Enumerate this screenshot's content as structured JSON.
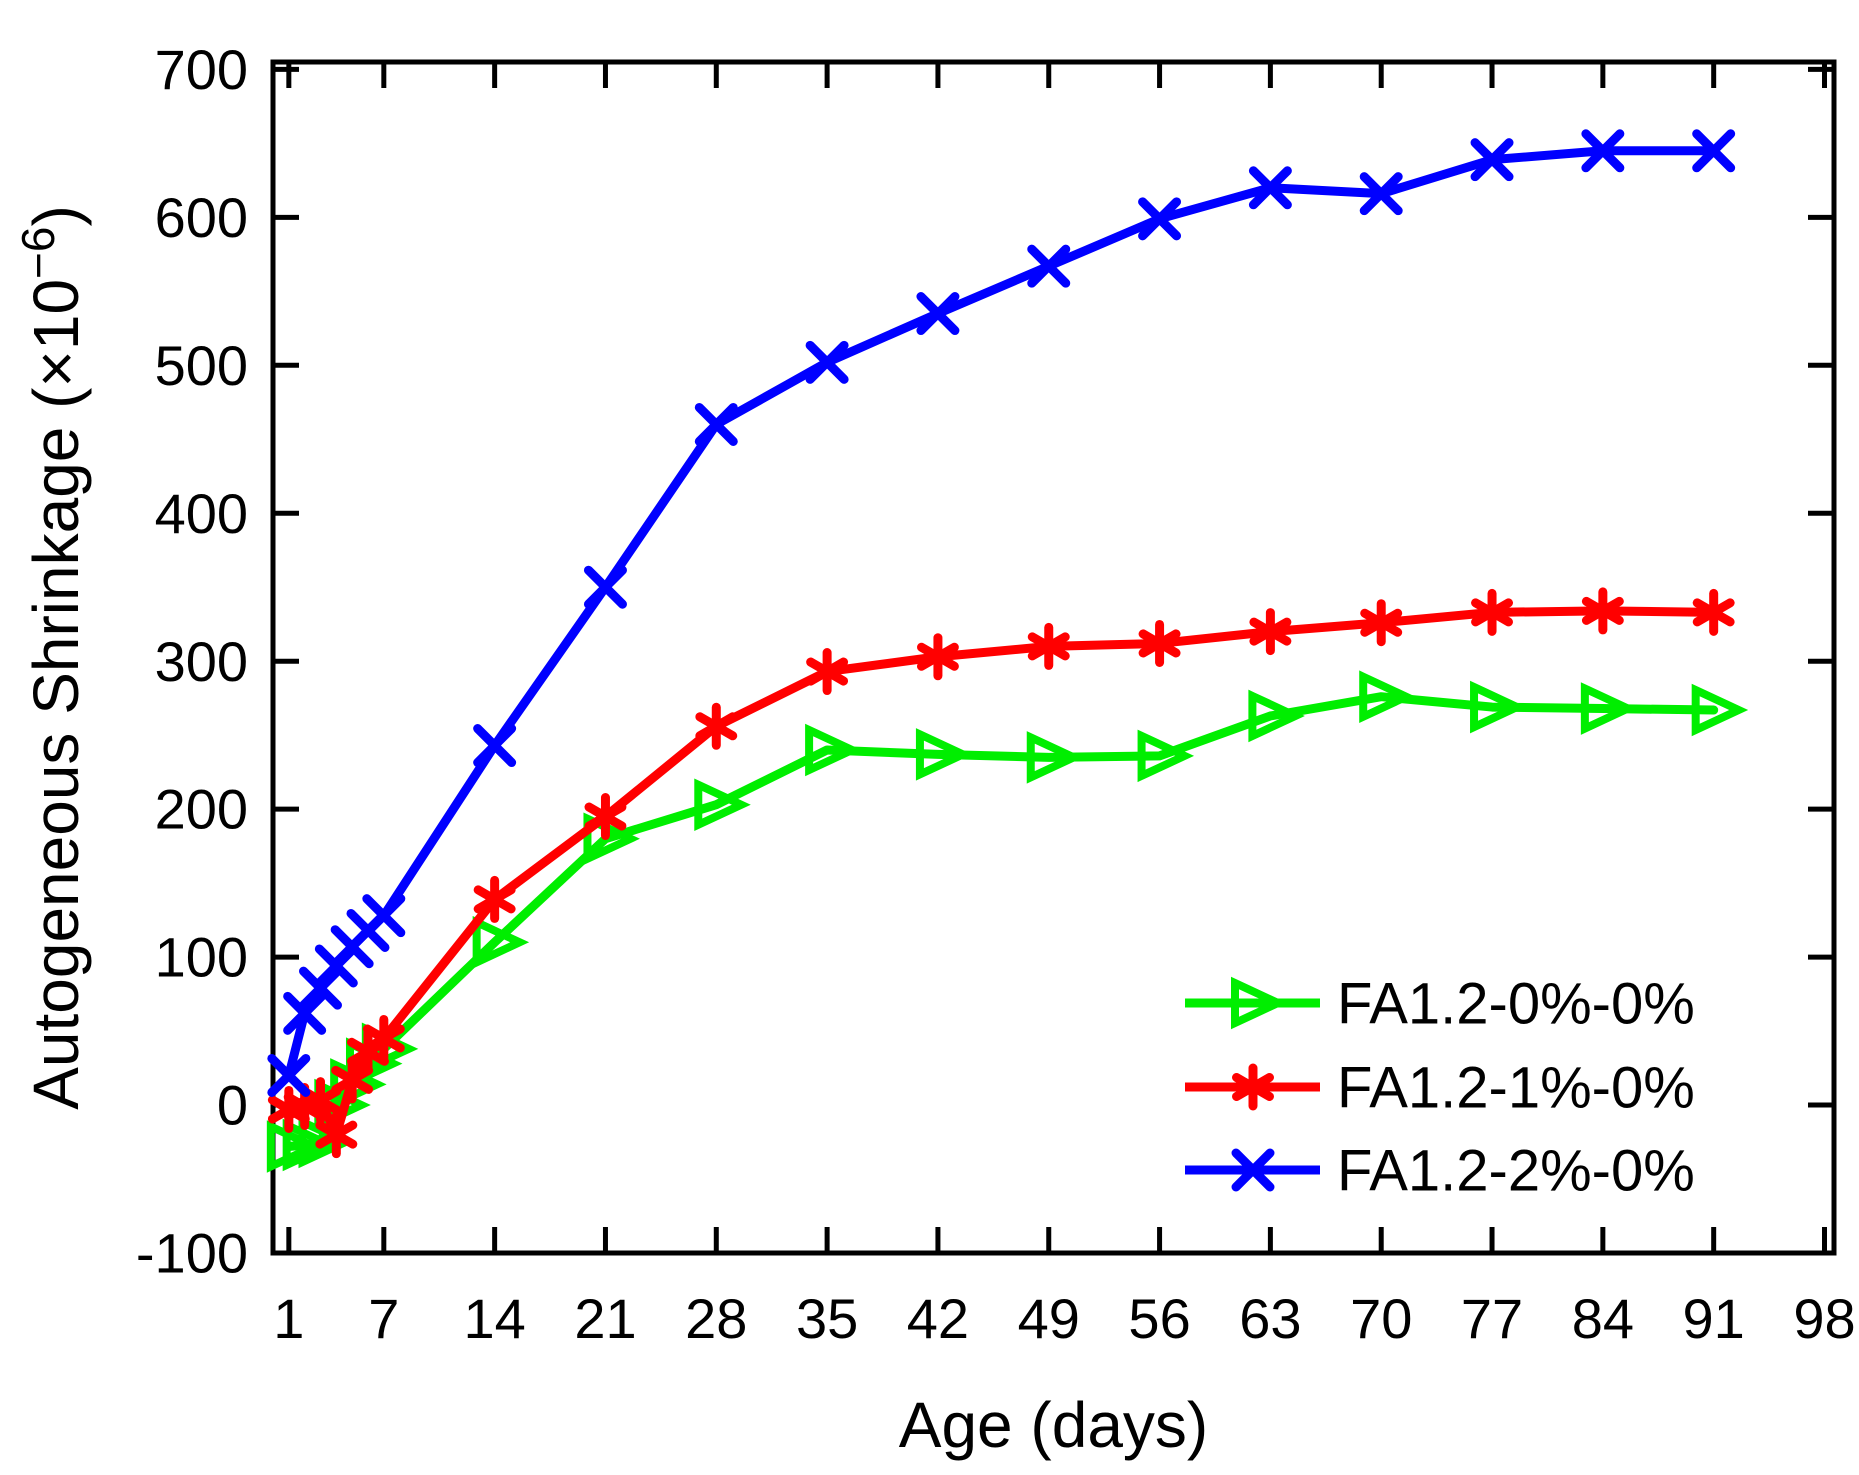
{
  "figure": {
    "background": "#ffffff",
    "axis_color": "#000000"
  },
  "chart_data": {
    "type": "line",
    "title": "",
    "xlabel": "Age (days)",
    "ylabel": "Autogeneous Shrinkage (×10⁻⁶)",
    "ylabel_parts": {
      "prefix": "Autogeneous Shrinkage (×10",
      "superscript": "−6",
      "suffix": ")"
    },
    "xlim": [
      0,
      98.6
    ],
    "ylim": [
      -100,
      705
    ],
    "x_ticks": [
      1,
      7,
      14,
      21,
      28,
      35,
      42,
      49,
      56,
      63,
      70,
      77,
      84,
      91,
      98
    ],
    "y_ticks": [
      -100,
      0,
      100,
      200,
      300,
      400,
      500,
      600,
      700
    ],
    "grid": false,
    "legend_position": "inside-lower-right",
    "x": [
      1,
      2,
      3,
      4,
      5,
      6,
      7,
      14,
      21,
      28,
      35,
      42,
      49,
      56,
      63,
      70,
      77,
      84,
      91
    ],
    "series": [
      {
        "name": "FA1.2-0%-0%",
        "color": "#00ee00",
        "marker": "triangle-right-open",
        "values": [
          -28,
          -27,
          -25,
          0,
          14,
          28,
          38,
          110,
          180,
          203,
          240,
          237,
          235,
          236,
          263,
          276,
          269,
          268,
          267
        ]
      },
      {
        "name": "FA1.2-1%-0%",
        "color": "#ff0000",
        "marker": "asterisk",
        "values": [
          -3,
          -1,
          3,
          -20,
          17,
          36,
          45,
          139,
          195,
          256,
          293,
          303,
          310,
          312,
          320,
          326,
          333,
          334,
          333
        ]
      },
      {
        "name": "FA1.2-2%-0%",
        "color": "#0000ff",
        "marker": "x",
        "values": [
          20,
          62,
          79,
          94,
          107,
          118,
          128,
          243,
          350,
          460,
          502,
          535,
          567,
          599,
          620,
          616,
          639,
          645,
          645
        ]
      }
    ]
  }
}
